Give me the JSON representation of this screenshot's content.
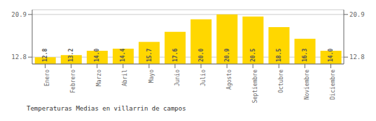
{
  "chart_data": {
    "type": "bar",
    "title": "Temperaturas Medias en villarrin de campos",
    "categories": [
      "Enero",
      "Febrero",
      "Marzo",
      "Abril",
      "Mayo",
      "Junio",
      "Julio",
      "Agosto",
      "Septiembre",
      "Octubre",
      "Noviembre",
      "Diciembre"
    ],
    "values": [
      12.8,
      13.2,
      14.0,
      14.4,
      15.7,
      17.6,
      20.0,
      20.9,
      20.5,
      18.5,
      16.3,
      14.0
    ],
    "value_labels": [
      "12.8",
      "13.2",
      "14.0",
      "14.4",
      "15.7",
      "17.6",
      "20.0",
      "20.9",
      "20.5",
      "18.5",
      "16.3",
      "14.0"
    ],
    "data_labels": true,
    "color": "#FFD700",
    "ylim": [
      11.5,
      21.8
    ],
    "yticks": [
      12.8,
      20.9
    ],
    "y2lim": [
      11.5,
      21.8
    ],
    "y2ticks": [
      12.8,
      20.9
    ],
    "grid": true
  }
}
